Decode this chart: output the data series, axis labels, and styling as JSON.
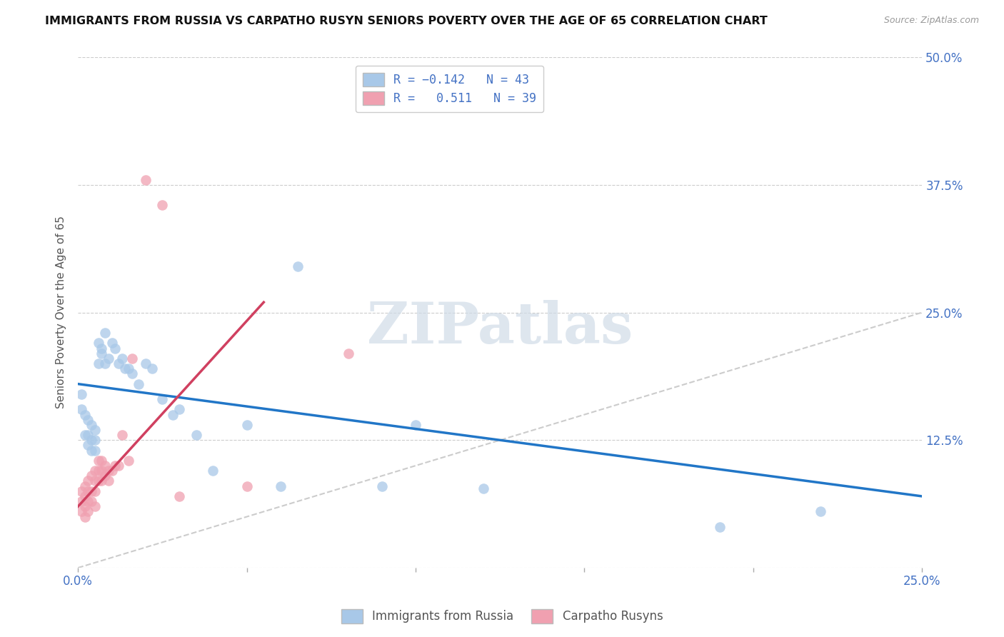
{
  "title": "IMMIGRANTS FROM RUSSIA VS CARPATHO RUSYN SENIORS POVERTY OVER THE AGE OF 65 CORRELATION CHART",
  "source": "Source: ZipAtlas.com",
  "ylabel": "Seniors Poverty Over the Age of 65",
  "xlim": [
    0.0,
    0.25
  ],
  "ylim": [
    0.0,
    0.5
  ],
  "legend_label1": "Immigrants from Russia",
  "legend_label2": "Carpatho Rusyns",
  "color_blue": "#a8c8e8",
  "color_pink": "#f0a0b0",
  "color_blue_line": "#2176c7",
  "color_pink_line": "#d04060",
  "watermark": "ZIPatlas",
  "blue_scatter_x": [
    0.001,
    0.001,
    0.002,
    0.002,
    0.003,
    0.003,
    0.003,
    0.004,
    0.004,
    0.004,
    0.005,
    0.005,
    0.005,
    0.006,
    0.006,
    0.007,
    0.007,
    0.008,
    0.008,
    0.009,
    0.01,
    0.011,
    0.012,
    0.013,
    0.014,
    0.015,
    0.016,
    0.018,
    0.02,
    0.022,
    0.025,
    0.028,
    0.03,
    0.035,
    0.04,
    0.05,
    0.06,
    0.065,
    0.09,
    0.1,
    0.12,
    0.19,
    0.22
  ],
  "blue_scatter_y": [
    0.155,
    0.17,
    0.15,
    0.13,
    0.145,
    0.13,
    0.12,
    0.14,
    0.125,
    0.115,
    0.135,
    0.125,
    0.115,
    0.22,
    0.2,
    0.215,
    0.21,
    0.23,
    0.2,
    0.205,
    0.22,
    0.215,
    0.2,
    0.205,
    0.195,
    0.195,
    0.19,
    0.18,
    0.2,
    0.195,
    0.165,
    0.15,
    0.155,
    0.13,
    0.095,
    0.14,
    0.08,
    0.295,
    0.08,
    0.14,
    0.078,
    0.04,
    0.055
  ],
  "pink_scatter_x": [
    0.001,
    0.001,
    0.001,
    0.002,
    0.002,
    0.002,
    0.002,
    0.003,
    0.003,
    0.003,
    0.003,
    0.004,
    0.004,
    0.004,
    0.005,
    0.005,
    0.005,
    0.005,
    0.006,
    0.006,
    0.006,
    0.007,
    0.007,
    0.007,
    0.008,
    0.008,
    0.009,
    0.009,
    0.01,
    0.011,
    0.012,
    0.013,
    0.015,
    0.016,
    0.02,
    0.025,
    0.03,
    0.05,
    0.08
  ],
  "pink_scatter_y": [
    0.075,
    0.065,
    0.055,
    0.08,
    0.07,
    0.06,
    0.05,
    0.085,
    0.075,
    0.065,
    0.055,
    0.09,
    0.075,
    0.065,
    0.095,
    0.085,
    0.075,
    0.06,
    0.105,
    0.095,
    0.085,
    0.105,
    0.095,
    0.085,
    0.1,
    0.09,
    0.095,
    0.085,
    0.095,
    0.1,
    0.1,
    0.13,
    0.105,
    0.205,
    0.38,
    0.355,
    0.07,
    0.08,
    0.21
  ],
  "blue_line_x": [
    0.0,
    0.25
  ],
  "blue_line_y": [
    0.18,
    0.07
  ],
  "pink_line_x": [
    0.0,
    0.055
  ],
  "pink_line_y": [
    0.06,
    0.26
  ],
  "diag_line_x": [
    0.0,
    0.25
  ],
  "diag_line_y": [
    0.0,
    0.25
  ]
}
